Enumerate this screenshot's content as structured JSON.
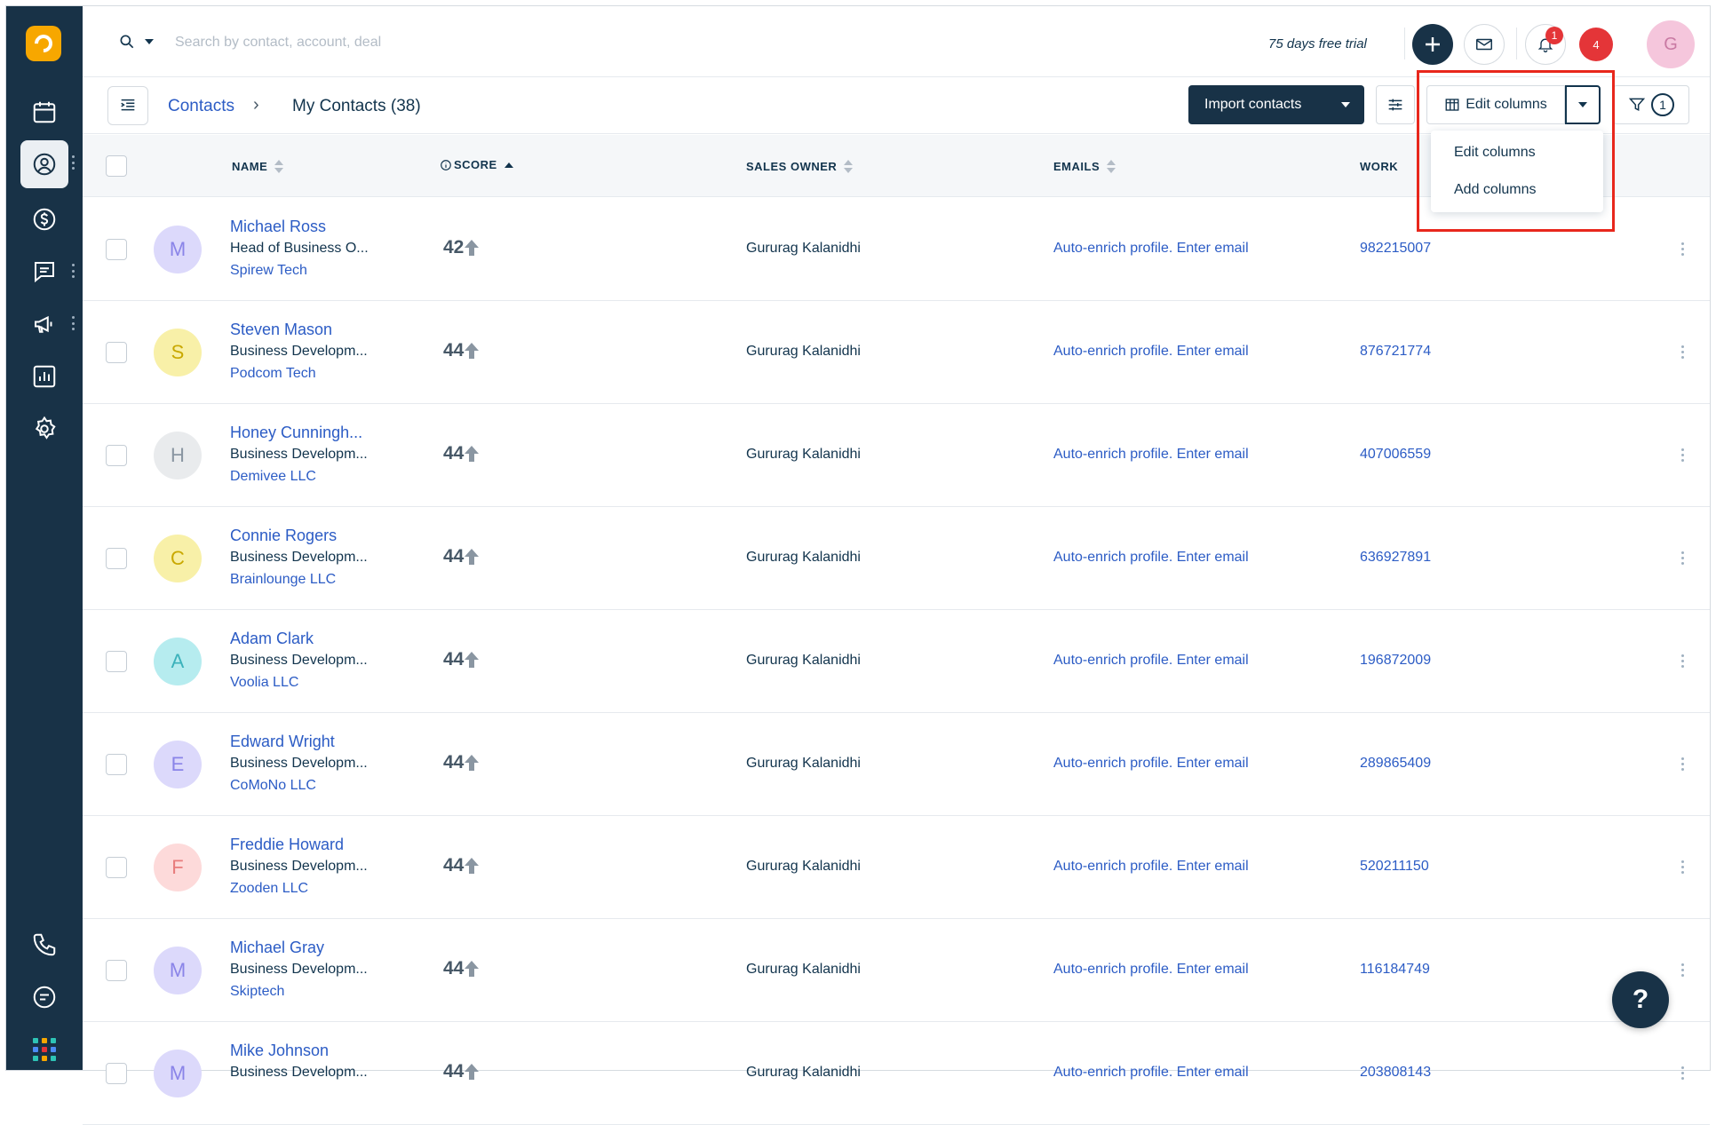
{
  "search": {
    "placeholder": "Search by contact, account, deal"
  },
  "trial_text": "75 days free trial",
  "badges": {
    "notifications": "1",
    "alerts": "4"
  },
  "user_avatar_letter": "G",
  "breadcrumb": {
    "root": "Contacts",
    "separator": "›",
    "current": "My Contacts (38)"
  },
  "toolbar": {
    "import_label": "Import contacts",
    "edit_columns_label": "Edit columns",
    "filter_count": "1"
  },
  "dropdown": {
    "items": [
      "Edit columns",
      "Add columns"
    ]
  },
  "table": {
    "headers": {
      "name": "NAME",
      "score": "SCORE",
      "sales_owner": "SALES OWNER",
      "emails": "EMAILS",
      "work": "WORK"
    },
    "rows": [
      {
        "initial": "M",
        "name": "Michael Ross",
        "title": "Head of Business O...",
        "company": "Spirew Tech",
        "score": "42",
        "owner": "Gururag Kalanidhi",
        "email": "Auto-enrich profile. Enter email",
        "phone": "982215007",
        "avatar_bg": "#dcd9fb",
        "avatar_fg": "#8a84e8"
      },
      {
        "initial": "S",
        "name": "Steven Mason",
        "title": "Business Developm...",
        "company": "Podcom Tech",
        "score": "44",
        "owner": "Gururag Kalanidhi",
        "email": "Auto-enrich profile. Enter email",
        "phone": "876721774",
        "avatar_bg": "#f8f0a8",
        "avatar_fg": "#c9a800"
      },
      {
        "initial": "H",
        "name": "Honey Cunningh...",
        "title": "Business Developm...",
        "company": "Demivee LLC",
        "score": "44",
        "owner": "Gururag Kalanidhi",
        "email": "Auto-enrich profile. Enter email",
        "phone": "407006559",
        "avatar_bg": "#e9ebed",
        "avatar_fg": "#8a96a2"
      },
      {
        "initial": "C",
        "name": "Connie Rogers",
        "title": "Business Developm...",
        "company": "Brainlounge LLC",
        "score": "44",
        "owner": "Gururag Kalanidhi",
        "email": "Auto-enrich profile. Enter email",
        "phone": "636927891",
        "avatar_bg": "#f8f0a8",
        "avatar_fg": "#c9a800"
      },
      {
        "initial": "A",
        "name": "Adam Clark",
        "title": "Business Developm...",
        "company": "Voolia LLC",
        "score": "44",
        "owner": "Gururag Kalanidhi",
        "email": "Auto-enrich profile. Enter email",
        "phone": "196872009",
        "avatar_bg": "#b6ecef",
        "avatar_fg": "#3bb2bb"
      },
      {
        "initial": "E",
        "name": "Edward Wright",
        "title": "Business Developm...",
        "company": "CoMoNo LLC",
        "score": "44",
        "owner": "Gururag Kalanidhi",
        "email": "Auto-enrich profile. Enter email",
        "phone": "289865409",
        "avatar_bg": "#dcd9fb",
        "avatar_fg": "#8a84e8"
      },
      {
        "initial": "F",
        "name": "Freddie Howard",
        "title": "Business Developm...",
        "company": "Zooden LLC",
        "score": "44",
        "owner": "Gururag Kalanidhi",
        "email": "Auto-enrich profile. Enter email",
        "phone": "520211150",
        "avatar_bg": "#fddada",
        "avatar_fg": "#e87c7c"
      },
      {
        "initial": "M",
        "name": "Michael Gray",
        "title": "Business Developm...",
        "company": "Skiptech",
        "score": "44",
        "owner": "Gururag Kalanidhi",
        "email": "Auto-enrich profile. Enter email",
        "phone": "116184749",
        "avatar_bg": "#dcd9fb",
        "avatar_fg": "#8a84e8"
      },
      {
        "initial": "M",
        "name": "Mike Johnson",
        "title": "Business Developm...",
        "company": "",
        "score": "44",
        "owner": "Gururag Kalanidhi",
        "email": "Auto-enrich profile. Enter email",
        "phone": "203808143",
        "avatar_bg": "#dcd9fb",
        "avatar_fg": "#8a84e8"
      }
    ]
  },
  "help_label": "?",
  "colors": {
    "sidebar": "#183247",
    "link": "#2c5cc5",
    "highlight": "#e8271c",
    "badge": "#e43538"
  }
}
